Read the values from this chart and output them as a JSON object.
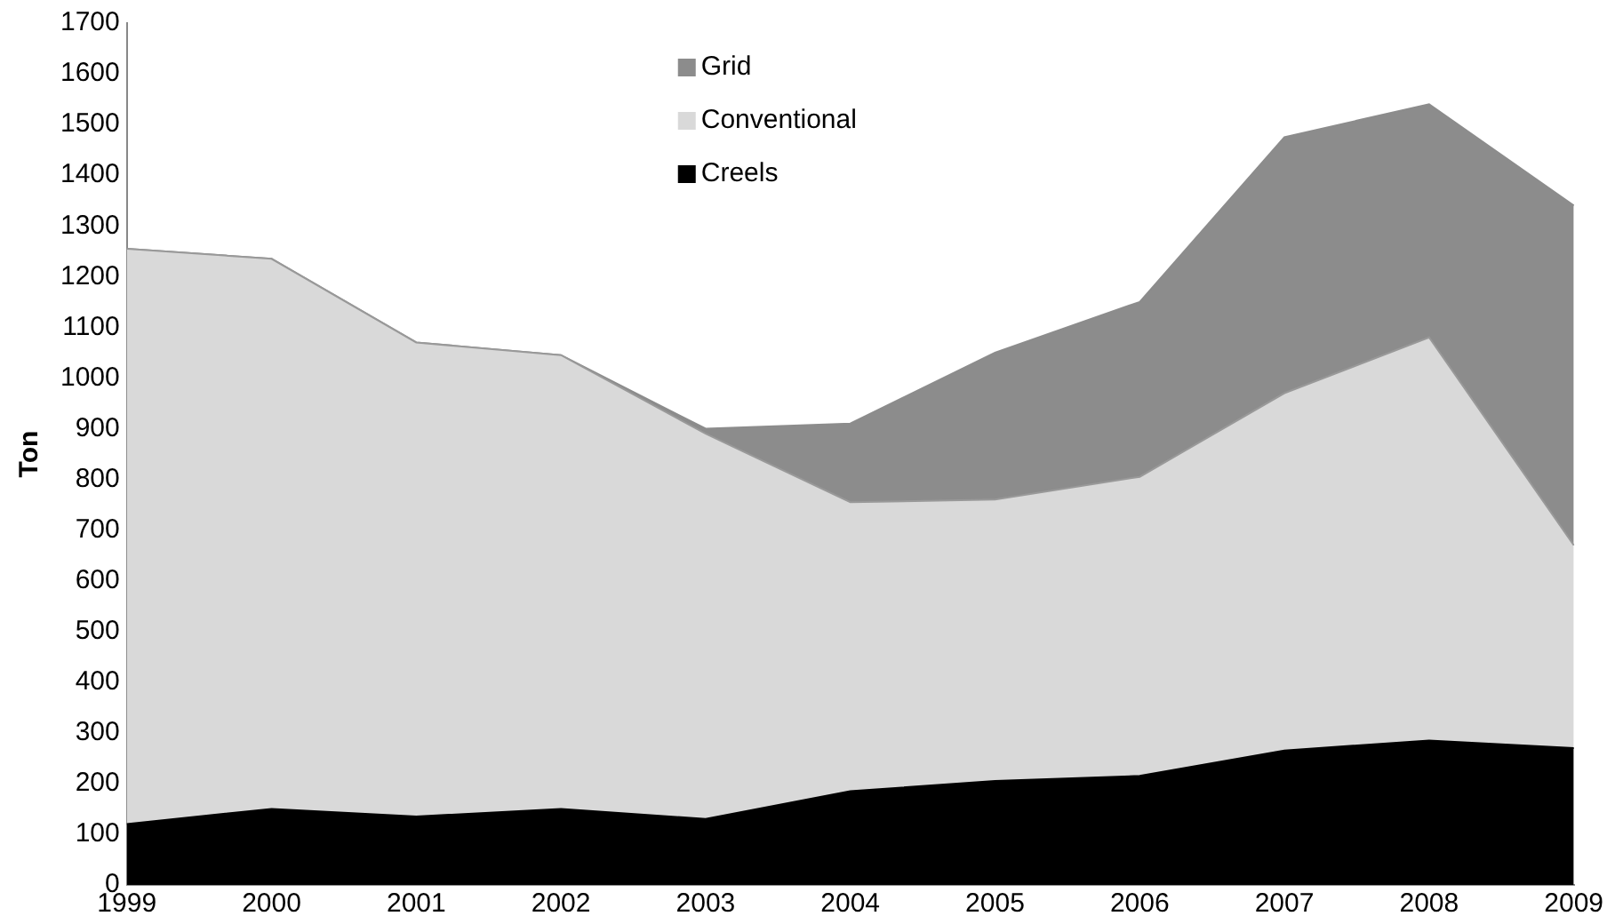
{
  "chart_data": {
    "type": "area",
    "ylabel": "Ton",
    "stacked": true,
    "categories": [
      "1999",
      "2000",
      "2001",
      "2002",
      "2003",
      "2004",
      "2005",
      "2006",
      "2007",
      "2008",
      "2009"
    ],
    "series": [
      {
        "name": "Creels",
        "color": "#000000",
        "values": [
          120,
          150,
          135,
          150,
          130,
          185,
          205,
          215,
          265,
          285,
          270
        ]
      },
      {
        "name": "Conventional",
        "color": "#d9d9d9",
        "values": [
          1135,
          1085,
          935,
          895,
          760,
          570,
          555,
          590,
          705,
          795,
          400
        ]
      },
      {
        "name": "Grid",
        "color": "#8c8c8c",
        "values": [
          0,
          0,
          0,
          0,
          10,
          155,
          290,
          345,
          505,
          460,
          670
        ]
      }
    ],
    "ylim": [
      0,
      1700
    ],
    "yticks": [
      0,
      100,
      200,
      300,
      400,
      500,
      600,
      700,
      800,
      900,
      1000,
      1100,
      1200,
      1300,
      1400,
      1500,
      1600,
      1700
    ],
    "grid": false,
    "legend": "top"
  }
}
